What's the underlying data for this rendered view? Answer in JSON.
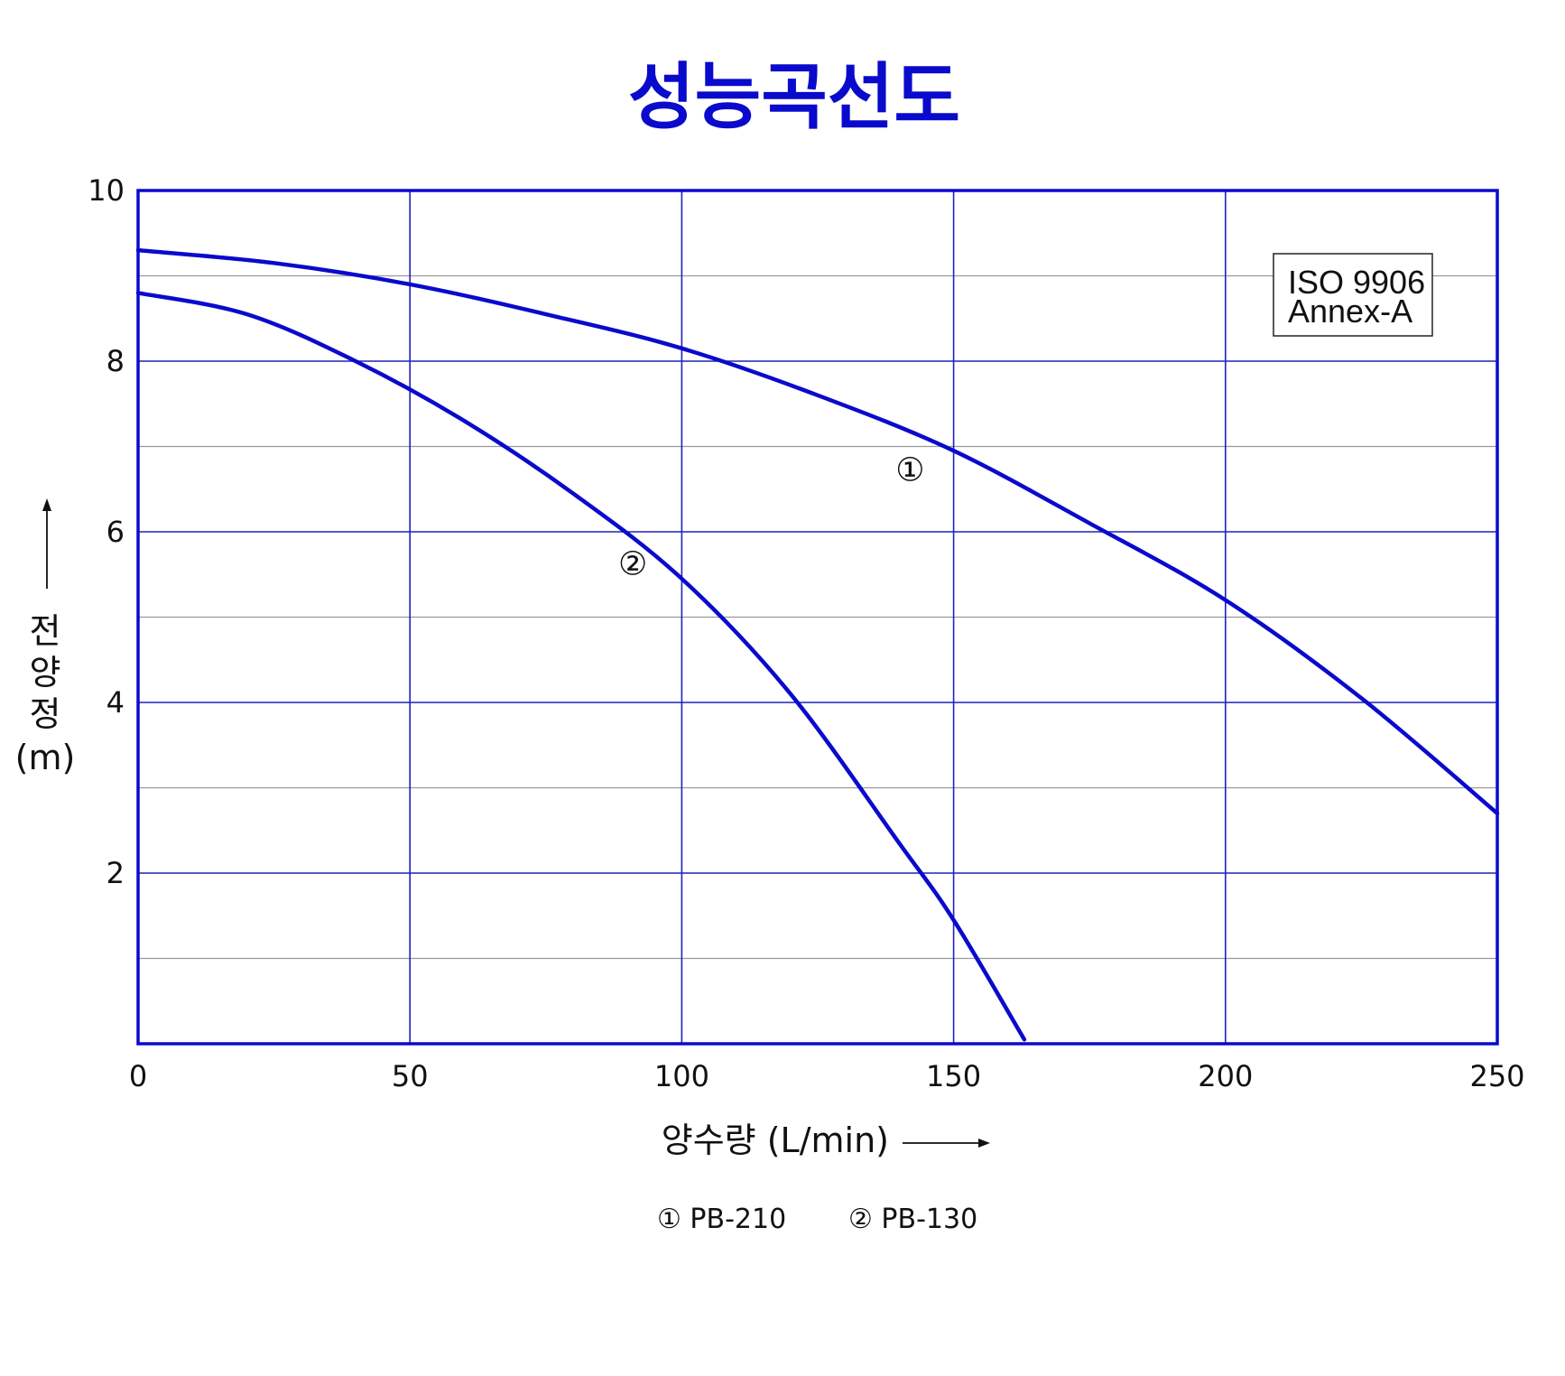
{
  "colors": {
    "accent": "#0a0acc",
    "grid_major": "#1f22b8",
    "grid_minor": "#9a9a9a",
    "text": "#111111"
  },
  "chart_data": {
    "type": "line",
    "title": "성능곡선도",
    "xlabel": "양수량 (L/min)",
    "ylabel_chars": [
      "전",
      "양",
      "정"
    ],
    "ylabel_unit": "(m)",
    "xlim": [
      0,
      250
    ],
    "ylim": [
      0,
      10
    ],
    "x_ticks": [
      "0",
      "50",
      "100",
      "150",
      "200",
      "250"
    ],
    "y_ticks": [
      "2",
      "4",
      "6",
      "8",
      "10"
    ],
    "grid": true,
    "standard_badge": [
      "ISO  9906",
      "Annex-A"
    ],
    "legend": [
      "① PB-210",
      "② PB-130"
    ],
    "legend_placement": "bottom-center",
    "series": [
      {
        "marker_label": "①",
        "label_point": [
          142,
          6.6
        ],
        "x": [
          0,
          25,
          50,
          75,
          100,
          125,
          150,
          175,
          200,
          225,
          250
        ],
        "y": [
          9.3,
          9.15,
          8.9,
          8.55,
          8.15,
          7.6,
          6.95,
          6.1,
          5.2,
          4.05,
          2.7
        ]
      },
      {
        "marker_label": "②",
        "label_point": [
          91,
          5.5
        ],
        "x": [
          0,
          20,
          40,
          60,
          80,
          100,
          120,
          140,
          150,
          163
        ],
        "y": [
          8.8,
          8.55,
          8.0,
          7.3,
          6.45,
          5.45,
          4.1,
          2.35,
          1.45,
          0.05
        ]
      }
    ]
  }
}
